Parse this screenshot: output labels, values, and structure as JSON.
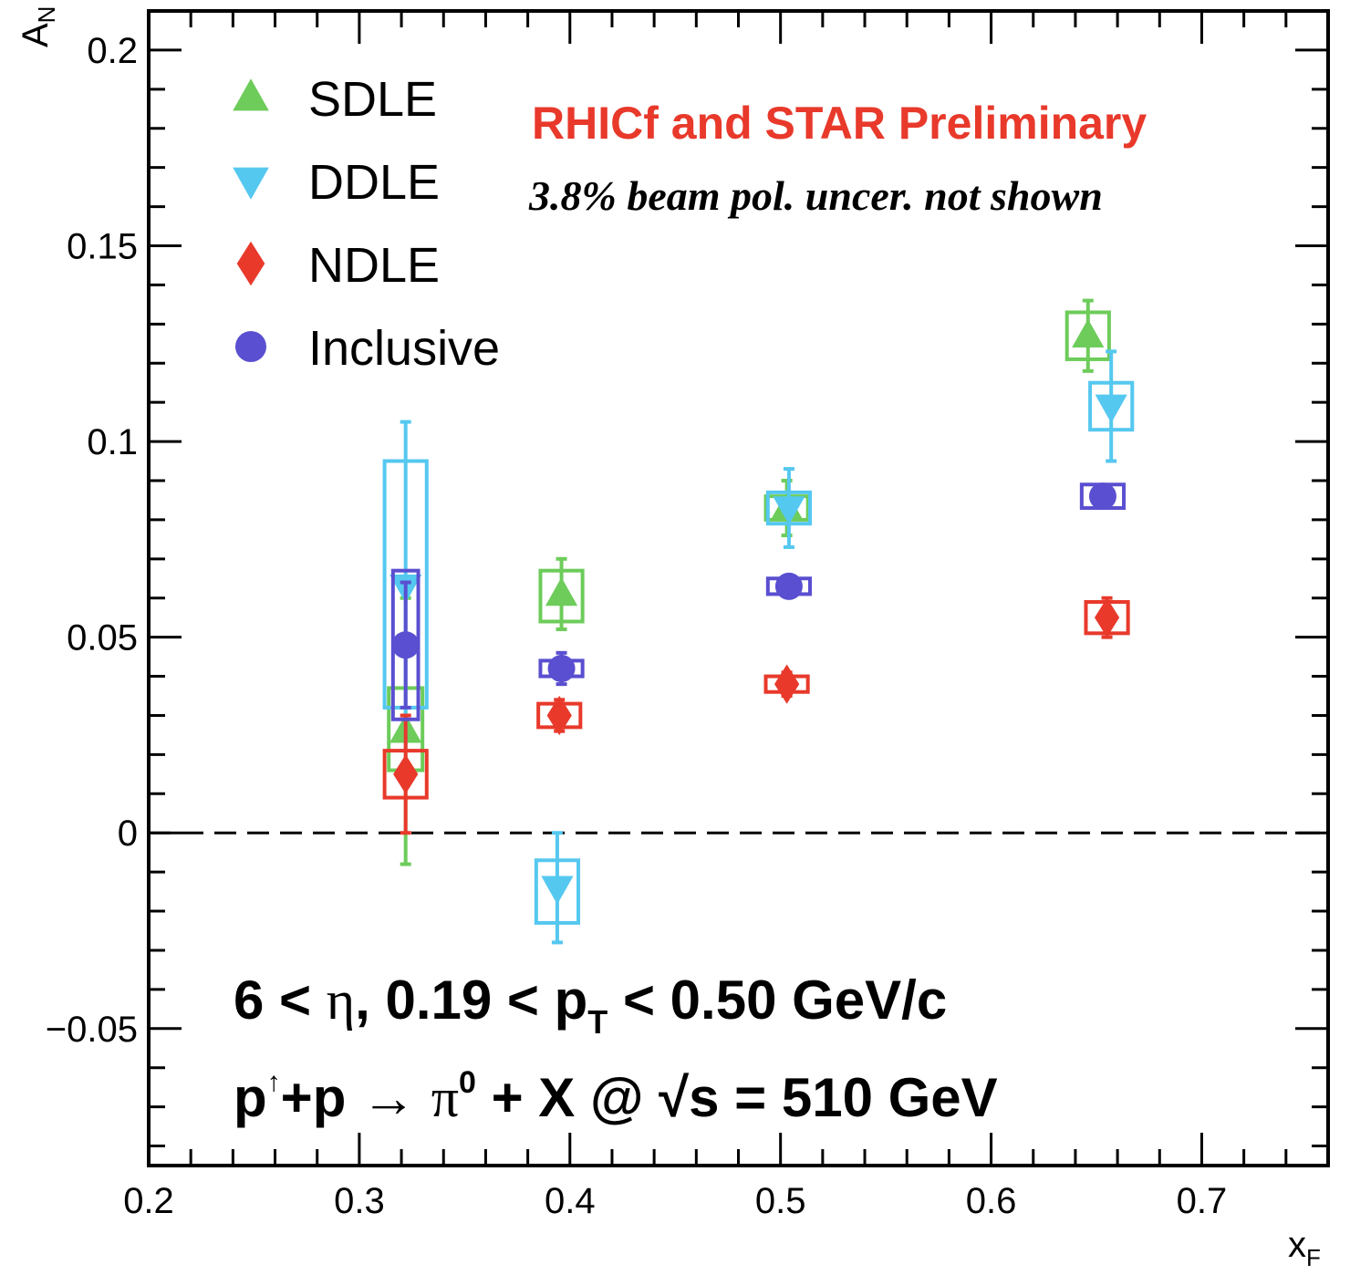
{
  "chart_data": {
    "type": "scatter",
    "xlabel": "x",
    "xlabel_sub": "F",
    "ylabel": "A",
    "ylabel_sub": "N",
    "xlim": [
      0.2,
      0.76
    ],
    "ylim": [
      -0.085,
      0.21
    ],
    "x_ticks": [
      {
        "v": 0.2,
        "label": "0.2"
      },
      {
        "v": 0.3,
        "label": "0.3"
      },
      {
        "v": 0.4,
        "label": "0.4"
      },
      {
        "v": 0.5,
        "label": "0.5"
      },
      {
        "v": 0.6,
        "label": "0.6"
      },
      {
        "v": 0.7,
        "label": "0.7"
      }
    ],
    "y_ticks": [
      {
        "v": -0.05,
        "label": "−0.05"
      },
      {
        "v": 0,
        "label": "0"
      },
      {
        "v": 0.05,
        "label": "0.05"
      },
      {
        "v": 0.1,
        "label": "0.1"
      },
      {
        "v": 0.15,
        "label": "0.15"
      },
      {
        "v": 0.2,
        "label": "0.2"
      }
    ],
    "grid": false,
    "reference_line": {
      "y": 0,
      "style": "dashed"
    },
    "legend_position": "top-left",
    "series": [
      {
        "name": "SDLE",
        "marker": "triangle-up",
        "color": "#6dcc5a",
        "points": [
          {
            "x": 0.322,
            "y": 0.026,
            "stat_lo": 0.034,
            "stat_hi": 0.034,
            "sys_lo": 0.01,
            "sys_hi": 0.011,
            "box_hw": 0.008
          },
          {
            "x": 0.396,
            "y": 0.061,
            "stat_lo": 0.009,
            "stat_hi": 0.009,
            "sys_lo": 0.007,
            "sys_hi": 0.006,
            "box_hw": 0.01
          },
          {
            "x": 0.503,
            "y": 0.083,
            "stat_lo": 0.007,
            "stat_hi": 0.007,
            "sys_lo": 0.003,
            "sys_hi": 0.003,
            "box_hw": 0.01
          },
          {
            "x": 0.646,
            "y": 0.127,
            "stat_lo": 0.009,
            "stat_hi": 0.009,
            "sys_lo": 0.006,
            "sys_hi": 0.006,
            "box_hw": 0.01
          }
        ]
      },
      {
        "name": "DDLE",
        "marker": "triangle-down",
        "color": "#55c8f0",
        "points": [
          {
            "x": 0.322,
            "y": 0.063,
            "stat_lo": 0.042,
            "stat_hi": 0.042,
            "sys_lo": 0.031,
            "sys_hi": 0.032,
            "box_hw": 0.01
          },
          {
            "x": 0.394,
            "y": -0.014,
            "stat_lo": 0.014,
            "stat_hi": 0.014,
            "sys_lo": 0.009,
            "sys_hi": 0.007,
            "box_hw": 0.01
          },
          {
            "x": 0.504,
            "y": 0.083,
            "stat_lo": 0.01,
            "stat_hi": 0.01,
            "sys_lo": 0.004,
            "sys_hi": 0.004,
            "box_hw": 0.01
          },
          {
            "x": 0.657,
            "y": 0.109,
            "stat_lo": 0.014,
            "stat_hi": 0.014,
            "sys_lo": 0.006,
            "sys_hi": 0.006,
            "box_hw": 0.01
          }
        ]
      },
      {
        "name": "NDLE",
        "marker": "diamond",
        "color": "#e8392b",
        "points": [
          {
            "x": 0.322,
            "y": 0.015,
            "stat_lo": 0.015,
            "stat_hi": 0.015,
            "sys_lo": 0.006,
            "sys_hi": 0.006,
            "box_hw": 0.01
          },
          {
            "x": 0.395,
            "y": 0.03,
            "stat_lo": 0.004,
            "stat_hi": 0.004,
            "sys_lo": 0.003,
            "sys_hi": 0.003,
            "box_hw": 0.01
          },
          {
            "x": 0.503,
            "y": 0.038,
            "stat_lo": 0.003,
            "stat_hi": 0.003,
            "sys_lo": 0.002,
            "sys_hi": 0.002,
            "box_hw": 0.01
          },
          {
            "x": 0.655,
            "y": 0.055,
            "stat_lo": 0.005,
            "stat_hi": 0.005,
            "sys_lo": 0.004,
            "sys_hi": 0.004,
            "box_hw": 0.01
          }
        ]
      },
      {
        "name": "Inclusive",
        "marker": "circle",
        "color": "#5a4fd0",
        "points": [
          {
            "x": 0.322,
            "y": 0.048,
            "stat_lo": 0.016,
            "stat_hi": 0.016,
            "sys_lo": 0.019,
            "sys_hi": 0.019,
            "box_hw": 0.006
          },
          {
            "x": 0.396,
            "y": 0.042,
            "stat_lo": 0.004,
            "stat_hi": 0.004,
            "sys_lo": 0.002,
            "sys_hi": 0.002,
            "box_hw": 0.01
          },
          {
            "x": 0.504,
            "y": 0.063,
            "stat_lo": 0.002,
            "stat_hi": 0.002,
            "sys_lo": 0.002,
            "sys_hi": 0.002,
            "box_hw": 0.01
          },
          {
            "x": 0.653,
            "y": 0.086,
            "stat_lo": 0.002,
            "stat_hi": 0.002,
            "sys_lo": 0.003,
            "sys_hi": 0.003,
            "box_hw": 0.01
          }
        ]
      }
    ],
    "annotations": {
      "preliminary": "RHICf and STAR Preliminary",
      "preliminary_color": "#e8392b",
      "pol_note": "3.8% beam pol. uncer. not shown",
      "cuts_1": "6 <",
      "cuts_2": "η",
      "cuts_3": ",   0.19 < p",
      "cuts_4": "T",
      "cuts_5": " < 0.50 GeV/c",
      "reaction_1": "p",
      "reaction_2": "↑",
      "reaction_3": "+p  →  ",
      "reaction_4": "π",
      "reaction_5": "0",
      "reaction_6": " + X @ ",
      "reaction_7": "√",
      "reaction_8": "s = 510 GeV"
    }
  }
}
